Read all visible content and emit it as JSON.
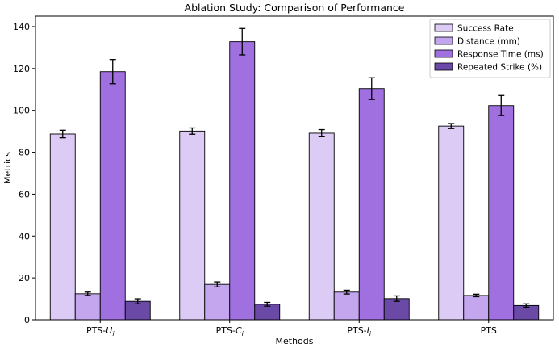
{
  "chart_data": {
    "type": "bar",
    "title": "Ablation Study: Comparison of Performance",
    "xlabel": "Methods",
    "ylabel": "Metrics",
    "categories": [
      {
        "base": "PTS-",
        "italic": "U",
        "sub": "i"
      },
      {
        "base": "PTS-",
        "italic": "C",
        "sub": "i"
      },
      {
        "base": "PTS-",
        "italic": "I",
        "sub": "i"
      },
      {
        "base": "PTS",
        "italic": "",
        "sub": ""
      }
    ],
    "ylim": [
      0,
      145
    ],
    "yticks": [
      0,
      20,
      40,
      60,
      80,
      100,
      120,
      140
    ],
    "legend_position": "top-right",
    "grid": false,
    "series": [
      {
        "name": "Success Rate",
        "color": "#dccbf4",
        "values": [
          88.7,
          90.1,
          89.1,
          92.5
        ],
        "errors": [
          1.8,
          1.5,
          1.7,
          1.2
        ]
      },
      {
        "name": "Distance (mm)",
        "color": "#c3a6ed",
        "values": [
          12.4,
          16.9,
          13.2,
          11.6
        ],
        "errors": [
          0.8,
          1.2,
          0.9,
          0.6
        ]
      },
      {
        "name": "Response Time (ms)",
        "color": "#a070e0",
        "values": [
          118.5,
          132.8,
          110.4,
          102.3
        ],
        "errors": [
          5.8,
          6.3,
          5.2,
          4.8
        ]
      },
      {
        "name": "Repeated Strike (%)",
        "color": "#6a4aa6",
        "values": [
          8.8,
          7.4,
          10.1,
          6.8
        ],
        "errors": [
          1.2,
          0.9,
          1.3,
          0.8
        ]
      }
    ]
  }
}
